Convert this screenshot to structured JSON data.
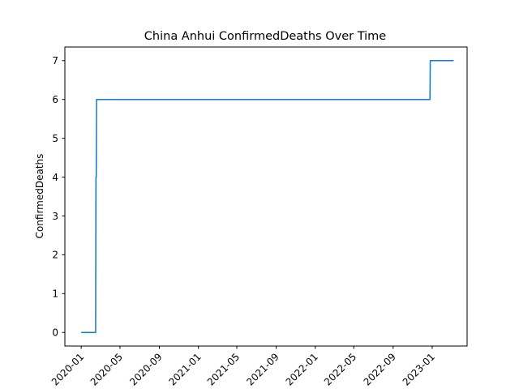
{
  "chart_data": {
    "type": "line",
    "title": "China Anhui ConfirmedDeaths Over Time",
    "xlabel": "",
    "ylabel": "ConfirmedDeaths",
    "ylim": [
      -0.35,
      7.35
    ],
    "xlim": [
      "2019-11-11",
      "2023-04-20"
    ],
    "yticks": [
      0,
      1,
      2,
      3,
      4,
      5,
      6,
      7
    ],
    "xticks": [
      {
        "date": "2020-01-01",
        "label": "2020-01"
      },
      {
        "date": "2020-05-01",
        "label": "2020-05"
      },
      {
        "date": "2020-09-01",
        "label": "2020-09"
      },
      {
        "date": "2021-01-01",
        "label": "2021-01"
      },
      {
        "date": "2021-05-01",
        "label": "2021-05"
      },
      {
        "date": "2021-09-01",
        "label": "2021-09"
      },
      {
        "date": "2022-01-01",
        "label": "2022-01"
      },
      {
        "date": "2022-05-01",
        "label": "2022-05"
      },
      {
        "date": "2022-09-01",
        "label": "2022-09"
      },
      {
        "date": "2023-01-01",
        "label": "2023-01"
      }
    ],
    "grid": false,
    "series": [
      {
        "color": "#1f77b4",
        "points": [
          {
            "x": "2020-01-01",
            "y": 0
          },
          {
            "x": "2020-02-15",
            "y": 0
          },
          {
            "x": "2020-02-16",
            "y": 4
          },
          {
            "x": "2020-02-17",
            "y": 4
          },
          {
            "x": "2020-02-18",
            "y": 6
          },
          {
            "x": "2022-12-25",
            "y": 6
          },
          {
            "x": "2022-12-26",
            "y": 7
          },
          {
            "x": "2023-03-09",
            "y": 7
          }
        ]
      }
    ]
  }
}
